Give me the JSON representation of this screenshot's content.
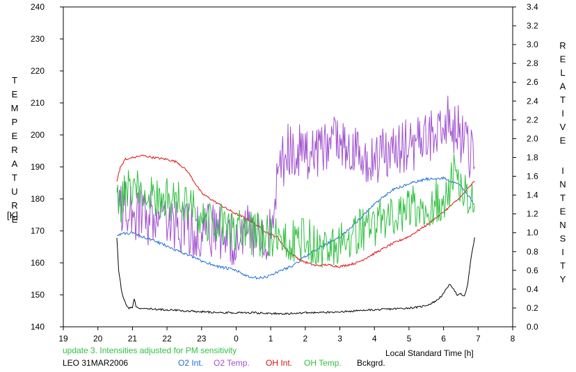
{
  "chart_data": {
    "type": "line",
    "xlabel": "Local Standard Time [h]",
    "x_ticks": [
      "19",
      "20",
      "21",
      "22",
      "23",
      "0",
      "1",
      "2",
      "3",
      "4",
      "5",
      "6",
      "7",
      "8"
    ],
    "ylabel_left": "TEMPERATURE",
    "ylabel_left_unit": "[K]",
    "ylim_left": [
      140,
      240
    ],
    "y_ticks_left": [
      "140",
      "150",
      "160",
      "170",
      "180",
      "190",
      "200",
      "210",
      "220",
      "230",
      "240"
    ],
    "ylabel_right": "RELATIVE INTENSITY",
    "ylim_right": [
      0,
      3.4
    ],
    "y_ticks_right": [
      "0.0",
      "0.2",
      "0.4",
      "0.6",
      "0.8",
      "1.0",
      "1.2",
      "1.4",
      "1.6",
      "1.8",
      "2.0",
      "2.2",
      "2.4",
      "2.6",
      "2.8",
      "3.0",
      "3.2",
      "3.4"
    ],
    "note": "update 3. Intensities adjusted for PM sensitivity",
    "station": "LEO 31MAR2006",
    "series": [
      {
        "name": "O2 Int.",
        "axis": "right",
        "color": "#1f6fd6",
        "noise": 0.015,
        "x": [
          20.55,
          21.0,
          21.5,
          22.0,
          22.5,
          23.0,
          23.5,
          24.0,
          24.4,
          24.8,
          25.0,
          25.3,
          25.7,
          26.0,
          26.5,
          27.0,
          27.5,
          28.0,
          28.5,
          29.0,
          29.5,
          30.0,
          30.5,
          30.9
        ],
        "values": [
          0.98,
          1.0,
          0.93,
          0.86,
          0.78,
          0.7,
          0.64,
          0.6,
          0.52,
          0.52,
          0.55,
          0.6,
          0.66,
          0.75,
          0.86,
          0.95,
          1.12,
          1.3,
          1.45,
          1.52,
          1.57,
          1.58,
          1.5,
          1.3
        ]
      },
      {
        "name": "O2 Temp.",
        "axis": "left",
        "color": "#a050d0",
        "noise": 9,
        "x": [
          20.55,
          21.0,
          21.5,
          22.0,
          22.5,
          23.0,
          23.5,
          24.0,
          24.5,
          24.9,
          25.2,
          25.5,
          26.0,
          26.5,
          27.0,
          27.5,
          28.0,
          28.5,
          29.0,
          29.5,
          30.0,
          30.3,
          30.6,
          30.9
        ],
        "values": [
          178,
          176,
          174,
          172,
          171,
          170,
          169,
          168,
          170,
          168,
          188,
          195,
          194,
          196,
          197,
          193,
          192,
          195,
          197,
          199,
          205,
          203,
          198,
          190
        ]
      },
      {
        "name": "OH Int.",
        "axis": "right",
        "color": "#e01010",
        "noise": 0.012,
        "x": [
          20.55,
          20.65,
          20.8,
          21.0,
          21.3,
          21.6,
          22.0,
          22.3,
          22.6,
          23.0,
          23.3,
          23.6,
          24.0,
          24.3,
          24.6,
          24.9,
          25.2,
          25.5,
          25.9,
          26.3,
          26.6,
          27.0,
          27.5,
          28.0,
          28.5,
          29.0,
          29.5,
          30.0,
          30.5,
          30.9
        ],
        "values": [
          1.55,
          1.7,
          1.78,
          1.8,
          1.82,
          1.8,
          1.78,
          1.75,
          1.65,
          1.42,
          1.35,
          1.28,
          1.2,
          1.15,
          1.08,
          1.0,
          0.95,
          0.8,
          0.7,
          0.65,
          0.66,
          0.64,
          0.68,
          0.78,
          0.88,
          0.96,
          1.08,
          1.22,
          1.38,
          1.55
        ]
      },
      {
        "name": "OH Temp.",
        "axis": "left",
        "color": "#30c040",
        "noise": 7,
        "x": [
          20.55,
          21.0,
          21.5,
          22.0,
          22.5,
          23.0,
          23.5,
          24.0,
          24.5,
          24.9,
          25.2,
          25.5,
          25.8,
          26.0,
          26.3,
          26.7,
          27.0,
          27.5,
          28.0,
          28.5,
          29.0,
          29.5,
          30.0,
          30.3,
          30.6,
          30.9
        ],
        "values": [
          178,
          184,
          181,
          180,
          178,
          174,
          172,
          170,
          169,
          168,
          167,
          168,
          166,
          168,
          165,
          164,
          166,
          170,
          172,
          175,
          177,
          178,
          180,
          187,
          184,
          178
        ]
      },
      {
        "name": "Bckgrd.",
        "axis": "right",
        "color": "#000000",
        "noise": 0.01,
        "x": [
          20.55,
          20.6,
          20.7,
          20.8,
          20.9,
          21.0,
          21.05,
          21.1,
          21.2,
          21.5,
          22.0,
          22.5,
          23.0,
          23.5,
          24.0,
          24.5,
          25.0,
          25.5,
          26.0,
          26.5,
          27.0,
          27.5,
          28.0,
          28.5,
          29.0,
          29.3,
          29.6,
          29.8,
          30.0,
          30.1,
          30.2,
          30.3,
          30.4,
          30.5,
          30.6,
          30.7,
          30.8,
          30.9
        ],
        "values": [
          0.95,
          0.6,
          0.35,
          0.25,
          0.2,
          0.21,
          0.3,
          0.22,
          0.2,
          0.19,
          0.18,
          0.17,
          0.16,
          0.15,
          0.15,
          0.15,
          0.14,
          0.14,
          0.15,
          0.15,
          0.16,
          0.17,
          0.18,
          0.19,
          0.2,
          0.21,
          0.24,
          0.28,
          0.35,
          0.42,
          0.45,
          0.4,
          0.33,
          0.35,
          0.32,
          0.45,
          0.75,
          0.95
        ]
      }
    ]
  }
}
